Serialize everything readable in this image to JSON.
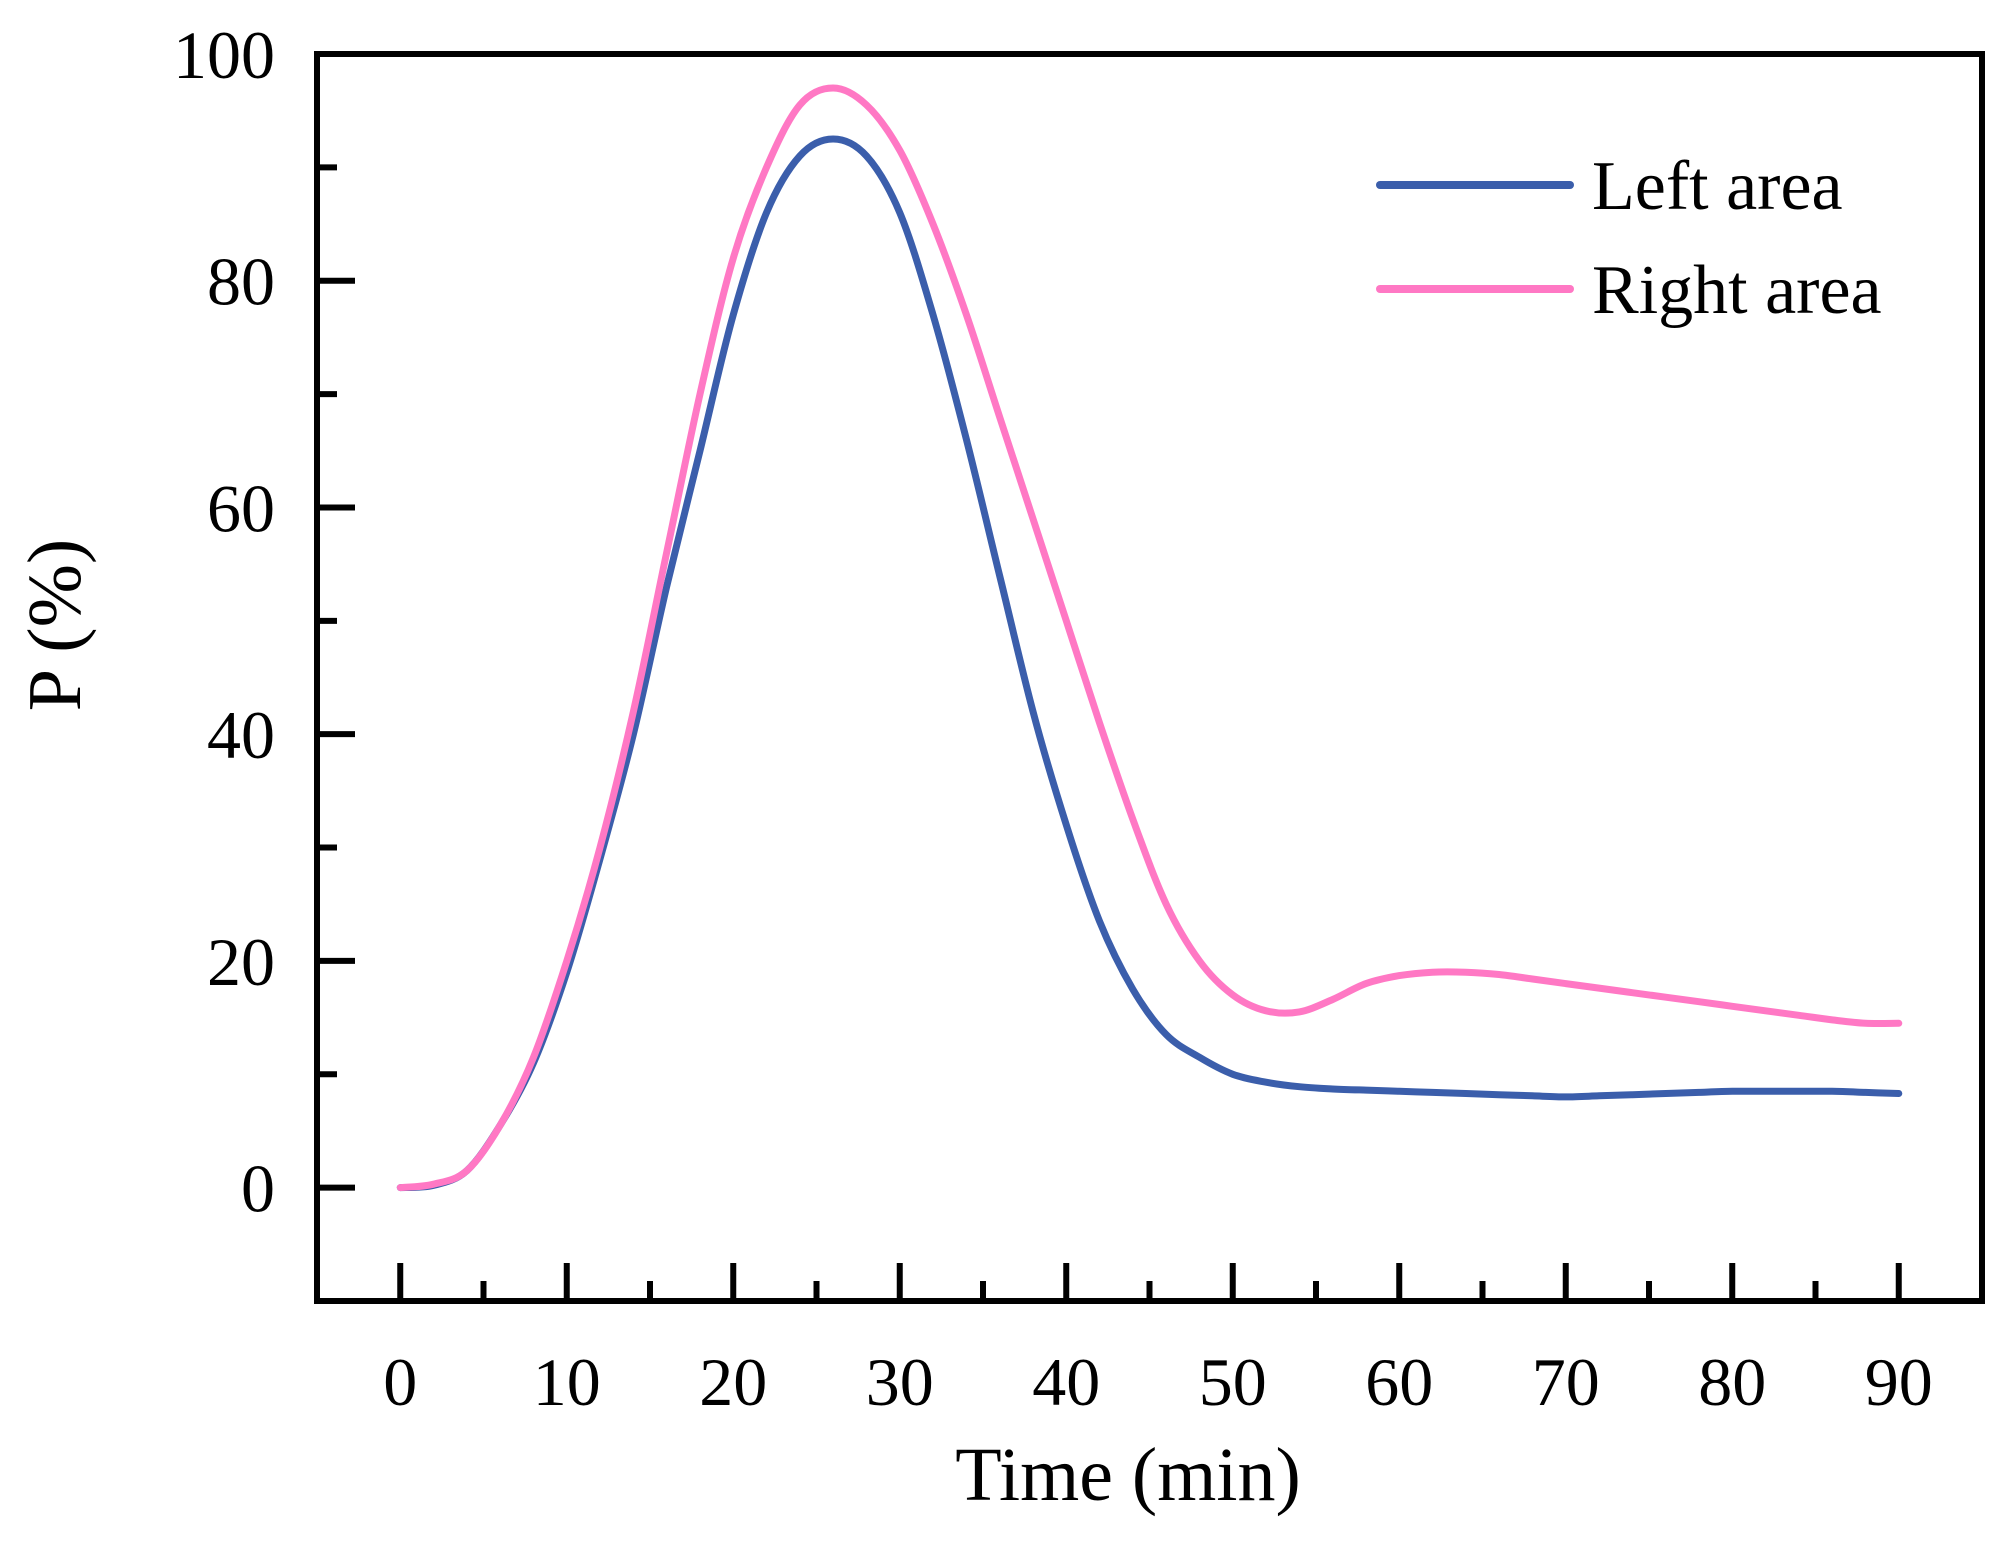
{
  "chart_data": {
    "type": "line",
    "title": "",
    "xlabel": "Time (min)",
    "ylabel": "P (%)",
    "xlim": [
      -5,
      95
    ],
    "ylim": [
      -10,
      100
    ],
    "xticks": [
      0,
      10,
      20,
      30,
      40,
      50,
      60,
      70,
      80,
      90
    ],
    "xtick_labels": [
      "0",
      "10",
      "20",
      "30",
      "40",
      "50",
      "60",
      "70",
      "80",
      "90"
    ],
    "yticks": [
      0,
      20,
      40,
      60,
      80,
      100
    ],
    "ytick_labels": [
      "0",
      "20",
      "40",
      "60",
      "80",
      "100"
    ],
    "x_minor_step": 5,
    "y_minor_step": 10,
    "grid": false,
    "legend_position": "top-right",
    "series": [
      {
        "name": "Left area",
        "color": "#3b5eab",
        "x": [
          0,
          2,
          4,
          6,
          8,
          10,
          12,
          14,
          16,
          18,
          20,
          22,
          24,
          26,
          28,
          30,
          32,
          34,
          36,
          38,
          40,
          42,
          44,
          46,
          48,
          50,
          52,
          54,
          56,
          58,
          60,
          62,
          64,
          66,
          68,
          70,
          72,
          74,
          76,
          78,
          80,
          82,
          84,
          86,
          88,
          90
        ],
        "values": [
          0,
          0.2,
          1.5,
          5.5,
          11,
          19,
          29,
          40,
          53,
          65,
          77,
          86,
          91,
          92.5,
          91,
          86,
          77,
          66,
          54,
          42,
          32,
          23.5,
          17.5,
          13.5,
          11.5,
          10,
          9.3,
          8.9,
          8.7,
          8.6,
          8.5,
          8.4,
          8.3,
          8.2,
          8.1,
          8.0,
          8.1,
          8.2,
          8.3,
          8.4,
          8.5,
          8.5,
          8.5,
          8.5,
          8.4,
          8.3
        ]
      },
      {
        "name": "Right area",
        "color": "#ff78c4",
        "x": [
          0,
          2,
          4,
          6,
          8,
          10,
          12,
          14,
          16,
          18,
          20,
          22,
          24,
          26,
          28,
          30,
          32,
          34,
          36,
          38,
          40,
          42,
          44,
          46,
          48,
          50,
          52,
          54,
          56,
          58,
          60,
          62,
          64,
          66,
          68,
          70,
          72,
          74,
          76,
          78,
          80,
          82,
          84,
          86,
          88,
          90
        ],
        "values": [
          0,
          0.3,
          1.5,
          5.5,
          11.5,
          20,
          30,
          42,
          56,
          70,
          82,
          90,
          95.5,
          97,
          95.5,
          91.5,
          85,
          77,
          68,
          59,
          50,
          41,
          32.5,
          25,
          20,
          17,
          15.6,
          15.5,
          16.6,
          18,
          18.7,
          19,
          19,
          18.8,
          18.4,
          18,
          17.6,
          17.2,
          16.8,
          16.4,
          16,
          15.6,
          15.2,
          14.8,
          14.5,
          14.5
        ]
      }
    ]
  }
}
